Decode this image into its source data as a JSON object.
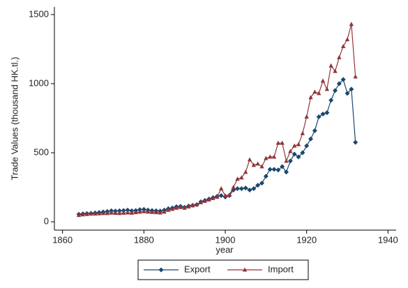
{
  "chart_data": {
    "type": "line",
    "xlabel": "year",
    "ylabel": "Trade Values (thousand HK.tl.)",
    "x": [
      1864,
      1865,
      1866,
      1867,
      1868,
      1869,
      1870,
      1871,
      1872,
      1873,
      1874,
      1875,
      1876,
      1877,
      1878,
      1879,
      1880,
      1881,
      1882,
      1883,
      1884,
      1885,
      1886,
      1887,
      1888,
      1889,
      1890,
      1891,
      1892,
      1893,
      1894,
      1895,
      1896,
      1897,
      1898,
      1899,
      1900,
      1901,
      1902,
      1903,
      1904,
      1905,
      1906,
      1907,
      1908,
      1909,
      1910,
      1911,
      1912,
      1913,
      1914,
      1915,
      1916,
      1917,
      1918,
      1919,
      1920,
      1921,
      1922,
      1923,
      1924,
      1925,
      1926,
      1927,
      1928,
      1929,
      1930,
      1931,
      1932
    ],
    "series": [
      {
        "name": "Export",
        "color": "#1a476f",
        "marker": "diamond",
        "values": [
          55,
          58,
          60,
          62,
          65,
          68,
          72,
          75,
          80,
          78,
          80,
          82,
          85,
          80,
          82,
          88,
          90,
          85,
          82,
          80,
          78,
          85,
          95,
          100,
          110,
          112,
          105,
          115,
          120,
          125,
          145,
          155,
          165,
          175,
          185,
          190,
          180,
          190,
          230,
          240,
          240,
          245,
          230,
          240,
          265,
          280,
          330,
          380,
          380,
          375,
          400,
          360,
          440,
          490,
          470,
          500,
          550,
          600,
          660,
          760,
          780,
          790,
          880,
          950,
          1000,
          1030,
          930,
          960,
          575
        ]
      },
      {
        "name": "Import",
        "color": "#90353b",
        "marker": "triangle",
        "values": [
          48,
          52,
          55,
          58,
          58,
          60,
          62,
          62,
          65,
          63,
          62,
          64,
          66,
          64,
          68,
          72,
          75,
          72,
          70,
          68,
          66,
          72,
          85,
          92,
          100,
          105,
          100,
          110,
          118,
          125,
          140,
          150,
          160,
          170,
          180,
          240,
          190,
          195,
          250,
          310,
          320,
          360,
          450,
          410,
          420,
          400,
          460,
          470,
          470,
          570,
          570,
          440,
          510,
          550,
          560,
          640,
          760,
          900,
          940,
          930,
          1020,
          960,
          1130,
          1090,
          1190,
          1270,
          1320,
          1430,
          1050
        ]
      }
    ],
    "xlim": [
      1858,
      1942
    ],
    "xticks": [
      1860,
      1880,
      1900,
      1920,
      1940
    ],
    "ylim": [
      -60,
      1555
    ],
    "yticks": [
      0,
      500,
      1000,
      1500
    ]
  }
}
